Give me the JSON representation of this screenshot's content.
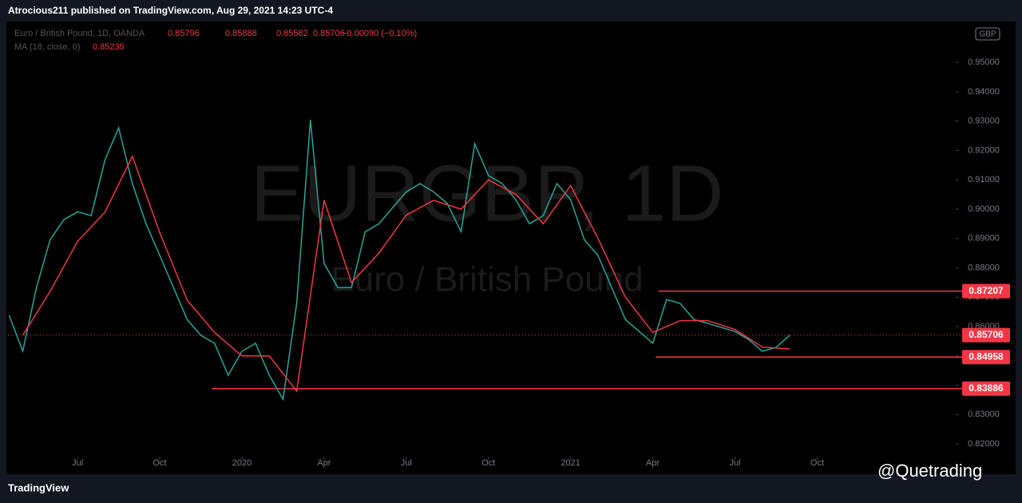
{
  "header": {
    "publisher": "Atrocious211 published on TradingView.com, Aug 29, 2021 14:23 UTC-4"
  },
  "chart_data": {
    "type": "line",
    "watermark": {
      "symbol": "EURGBP, 1D",
      "description": "Euro / British Pound"
    },
    "legend": {
      "symbol": "Euro / British Pound, 1D, OANDA",
      "open": 0.85796,
      "high": 0.85888,
      "low": 0.85582,
      "close": 0.85706,
      "change": "−0.00090 (−0.10%)"
    },
    "currency": "GBP",
    "x": [
      3.5,
      4,
      4.5,
      5,
      5.5,
      6,
      6.5,
      7,
      7.5,
      8,
      8.5,
      9,
      9.5,
      10,
      10.5,
      11,
      11.5,
      12,
      12.5,
      13,
      13.5,
      14,
      14.5,
      15,
      15.5,
      16,
      16.5,
      17,
      17.5,
      18,
      18.5,
      19,
      19.5,
      20,
      20.5,
      21,
      21.5,
      22,
      22.5,
      23,
      23.5,
      24,
      24.5,
      25,
      25.5,
      26,
      26.5,
      27,
      27.5,
      28,
      28.5,
      29,
      29.5,
      30,
      30.5,
      31,
      31.5,
      32
    ],
    "series": [
      {
        "name": "Euro / British Pound",
        "color": "#26a69a",
        "values": [
          0.8638,
          0.8516,
          0.8733,
          0.8896,
          0.8964,
          0.8991,
          0.8978,
          0.9168,
          0.9277,
          0.9087,
          0.895,
          0.8842,
          0.8733,
          0.8624,
          0.857,
          0.8543,
          0.8434,
          0.8516,
          0.8543,
          0.8434,
          0.8352,
          0.8679,
          0.9304,
          0.8815,
          0.8733,
          0.8733,
          0.8923,
          0.895,
          0.9005,
          0.9059,
          0.9087,
          0.9059,
          0.9019,
          0.8923,
          0.9223,
          0.9114,
          0.9087,
          0.9032,
          0.895,
          0.8978,
          0.9087,
          0.9032,
          0.8896,
          0.8842,
          0.8733,
          0.8624,
          0.8583,
          0.8543,
          0.8692,
          0.8679,
          0.8624,
          0.8611,
          0.8597,
          0.8583,
          0.8556,
          0.8516,
          0.8529,
          0.85706
        ]
      },
      {
        "name": "MA (18, close, 0)",
        "color": "#f23645",
        "last": 0.85235,
        "x": [
          4,
          5,
          6,
          7,
          8,
          9,
          10,
          11,
          12,
          13,
          14,
          15,
          16,
          17,
          18,
          19,
          20,
          21,
          22,
          23,
          24,
          25,
          26,
          27,
          28,
          29,
          30,
          31,
          32
        ],
        "values": [
          0.857,
          0.872,
          0.889,
          0.899,
          0.918,
          0.892,
          0.869,
          0.858,
          0.85,
          0.85,
          0.838,
          0.903,
          0.875,
          0.885,
          0.898,
          0.903,
          0.9,
          0.91,
          0.905,
          0.895,
          0.908,
          0.89,
          0.87,
          0.858,
          0.862,
          0.862,
          0.859,
          0.853,
          0.85235
        ]
      }
    ],
    "levels": [
      {
        "value": 0.87207,
        "from": 27.2
      },
      {
        "value": 0.84958,
        "from": 27.1
      },
      {
        "value": 0.83886,
        "from": 10.9
      }
    ],
    "last_price": 0.85706,
    "level_color": "#f23645",
    "xlim": [
      3.46,
      38
    ],
    "ylim": [
      0.8162,
      0.9631
    ],
    "xticks": [
      {
        "value": 6,
        "label": "Jul"
      },
      {
        "value": 9,
        "label": "Oct"
      },
      {
        "value": 12,
        "label": "2020"
      },
      {
        "value": 15,
        "label": "Apr"
      },
      {
        "value": 18,
        "label": "Jul"
      },
      {
        "value": 21,
        "label": "Oct"
      },
      {
        "value": 24,
        "label": "2021"
      },
      {
        "value": 27,
        "label": "Apr"
      },
      {
        "value": 30,
        "label": "Jul"
      },
      {
        "value": 33,
        "label": "Oct"
      }
    ],
    "yticks": [
      {
        "value": 0.82,
        "label": "0.82000"
      },
      {
        "value": 0.83,
        "label": "0.83000"
      },
      {
        "value": 0.84,
        "label": "0.84000"
      },
      {
        "value": 0.85,
        "label": "0.85000"
      },
      {
        "value": 0.86,
        "label": "0.86000"
      },
      {
        "value": 0.87,
        "label": "0.87000"
      },
      {
        "value": 0.88,
        "label": "0.88000"
      },
      {
        "value": 0.89,
        "label": "0.89000"
      },
      {
        "value": 0.9,
        "label": "0.90000"
      },
      {
        "value": 0.91,
        "label": "0.91000"
      },
      {
        "value": 0.92,
        "label": "0.92000"
      },
      {
        "value": 0.93,
        "label": "0.93000"
      },
      {
        "value": 0.94,
        "label": "0.94000"
      },
      {
        "value": 0.95,
        "label": "0.95000"
      }
    ]
  },
  "footer": {
    "brand": "TradingView",
    "handle": "@Quetrading"
  }
}
